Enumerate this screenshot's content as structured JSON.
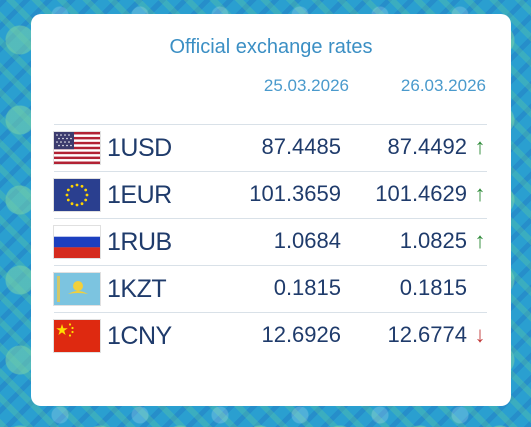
{
  "title": "Official exchange rates",
  "dates": [
    "25.03.2026",
    "26.03.2026"
  ],
  "colors": {
    "up": "#2e8b3a",
    "down": "#c23b3b",
    "text": "#1f3b6b",
    "accent": "#3b8fc4"
  },
  "rates": [
    {
      "code": "1USD",
      "flag": "usa-flag-icon",
      "rate_1": "87.4485",
      "rate_2": "87.4492",
      "trend": "↑",
      "direction": "up"
    },
    {
      "code": "1EUR",
      "flag": "eu-flag-icon",
      "rate_1": "101.3659",
      "rate_2": "101.4629",
      "trend": "↑",
      "direction": "up"
    },
    {
      "code": "1RUB",
      "flag": "russia-flag-icon",
      "rate_1": "1.0684",
      "rate_2": "1.0825",
      "trend": "↑",
      "direction": "up"
    },
    {
      "code": "1KZT",
      "flag": "kazakhstan-flag-icon",
      "rate_1": "0.1815",
      "rate_2": "0.1815",
      "trend": "",
      "direction": "none"
    },
    {
      "code": "1CNY",
      "flag": "china-flag-icon",
      "rate_1": "12.6926",
      "rate_2": "12.6774",
      "trend": "↓",
      "direction": "down"
    }
  ]
}
